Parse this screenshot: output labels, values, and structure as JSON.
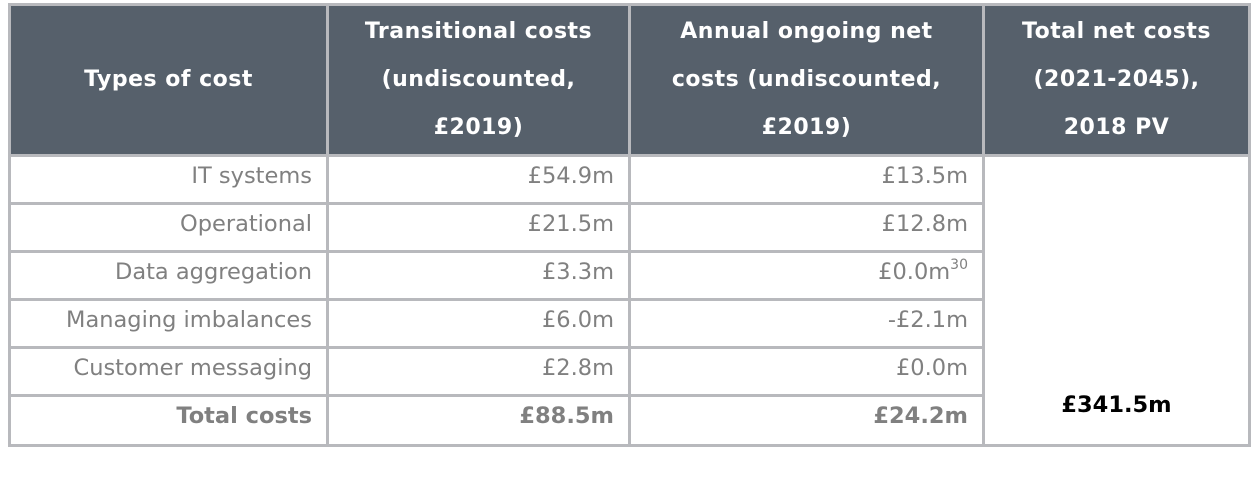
{
  "table": {
    "headers": [
      "Types of cost",
      "Transitional costs (undiscounted, £2019)",
      "Annual ongoing net costs (undiscounted, £2019)",
      "Total net costs (2021-2045), 2018 PV"
    ],
    "header_lines": [
      [
        "Types of cost"
      ],
      [
        "Transitional costs",
        "(undiscounted,",
        "£2019)"
      ],
      [
        "Annual ongoing net",
        "costs (undiscounted,",
        "£2019)"
      ],
      [
        "Total net costs",
        "(2021-2045),",
        "2018 PV"
      ]
    ],
    "rows": [
      {
        "type": "IT systems",
        "transitional": "£54.9m",
        "annual": "£13.5m",
        "annual_note": ""
      },
      {
        "type": "Operational",
        "transitional": "£21.5m",
        "annual": "£12.8m",
        "annual_note": ""
      },
      {
        "type": "Data aggregation",
        "transitional": "£3.3m",
        "annual": "£0.0m",
        "annual_note": "30"
      },
      {
        "type": "Managing imbalances",
        "transitional": "£6.0m",
        "annual": "-£2.1m",
        "annual_note": ""
      },
      {
        "type": "Customer messaging",
        "transitional": "£2.8m",
        "annual": "£0.0m",
        "annual_note": ""
      }
    ],
    "total": {
      "type": "Total costs",
      "transitional": "£88.5m",
      "annual": "£24.2m",
      "pv": "£341.5m"
    }
  },
  "colors": {
    "header_bg": "#56606b",
    "border": "#b8b9bd",
    "body_text": "#808080"
  }
}
